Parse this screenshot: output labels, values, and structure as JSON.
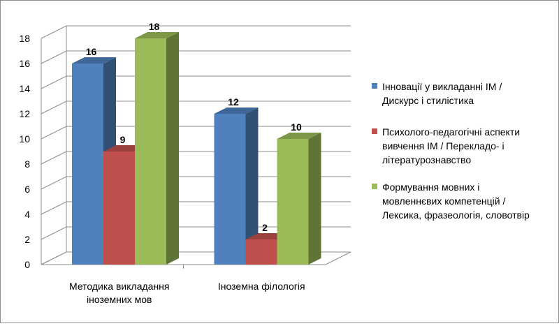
{
  "chart_data": {
    "type": "bar",
    "style": "3d-clustered-column",
    "categories": [
      [
        "Методика викладання",
        "іноземних мов"
      ],
      [
        "Іноземна філологія"
      ]
    ],
    "series": [
      {
        "name": [
          "Інновації у викладанні ІМ /",
          "Дискурс і стилістика"
        ],
        "values": [
          16,
          12
        ],
        "color": "#4f81bd"
      },
      {
        "name": [
          "Психолого-педагогічні аспекти",
          "вивчення ІМ / Перекладо- і",
          "літературознавство"
        ],
        "values": [
          9,
          2
        ],
        "color": "#c0504d"
      },
      {
        "name": [
          "Формування мовних і",
          "мовленнєвих компетенцій /",
          "Лексика, фразеологія, словотвір"
        ],
        "values": [
          18,
          10
        ],
        "color": "#9bbb59"
      }
    ],
    "ylim": [
      0,
      18
    ],
    "yticks": [
      0,
      2,
      4,
      6,
      8,
      10,
      12,
      14,
      16,
      18
    ],
    "grid": true,
    "legend": "right",
    "data_labels": true
  }
}
